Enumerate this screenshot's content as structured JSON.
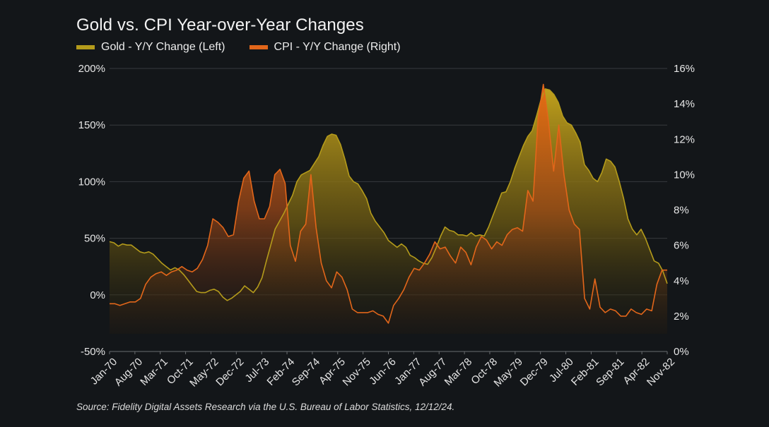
{
  "chart_title": "Gold vs. CPI Year-over-Year Changes",
  "legend": {
    "gold_label": "Gold - Y/Y Change (Left)",
    "cpi_label": "CPI - Y/Y Change (Right)"
  },
  "source": "Source: Fidelity Digital Assets Research via the U.S. Bureau of Labor Statistics, 12/12/24.",
  "colors": {
    "background": "#131619",
    "gold": "#b49b1b",
    "cpi": "#e2661a",
    "grid": "#3a3d41"
  },
  "chart_data": {
    "type": "area",
    "title": "Gold vs. CPI Year-over-Year Changes",
    "x_start": "Jan-70",
    "x_end": "Dec-82",
    "x_ticks": [
      "Jan-70",
      "Aug-70",
      "Mar-71",
      "Oct-71",
      "May-72",
      "Dec-72",
      "Jul-73",
      "Feb-74",
      "Sep-74",
      "Apr-75",
      "Nov-75",
      "Jun-76",
      "Jan-77",
      "Aug-77",
      "Mar-78",
      "Oct-78",
      "May-79",
      "Dec-79",
      "Jul-80",
      "Feb-81",
      "Sep-81",
      "Apr-82",
      "Nov-82"
    ],
    "y_left": {
      "ticks": [
        "-50%",
        "0%",
        "50%",
        "100%",
        "150%",
        "200%"
      ],
      "range": [
        -50,
        200
      ]
    },
    "y_right": {
      "ticks": [
        "0%",
        "2%",
        "4%",
        "6%",
        "8%",
        "10%",
        "12%",
        "14%",
        "16%"
      ],
      "range": [
        0,
        16
      ]
    },
    "grid": "horizontal",
    "legend_position": "top-left",
    "series": [
      {
        "name": "Gold - Y/Y Change (Left)",
        "axis": "left",
        "values": [
          47,
          46,
          43,
          45,
          44,
          44,
          41,
          38,
          37,
          38,
          36,
          32,
          28,
          25,
          22,
          24,
          22,
          18,
          13,
          8,
          3,
          2,
          2,
          4,
          5,
          3,
          -2,
          -5,
          -3,
          0,
          3,
          8,
          5,
          2,
          7,
          15,
          30,
          44,
          58,
          65,
          72,
          80,
          88,
          100,
          106,
          108,
          110,
          116,
          122,
          132,
          140,
          142,
          141,
          133,
          120,
          105,
          100,
          98,
          92,
          85,
          72,
          65,
          60,
          55,
          48,
          45,
          42,
          45,
          42,
          35,
          33,
          30,
          28,
          27,
          33,
          42,
          52,
          60,
          57,
          56,
          53,
          53,
          52,
          55,
          52,
          53,
          52,
          60,
          70,
          80,
          90,
          91,
          100,
          112,
          122,
          132,
          140,
          145,
          158,
          172,
          182,
          181,
          177,
          170,
          158,
          152,
          150,
          143,
          135,
          115,
          110,
          103,
          100,
          108,
          120,
          118,
          113,
          100,
          85,
          67,
          58,
          53,
          58,
          50,
          40,
          30,
          28,
          21,
          10
        ],
        "line_color": "#b49b1b"
      },
      {
        "name": "CPI - Y/Y Change (Right)",
        "axis": "right",
        "values": [
          2.7,
          2.7,
          2.6,
          2.7,
          2.8,
          2.8,
          3.0,
          3.8,
          4.2,
          4.4,
          4.5,
          4.3,
          4.5,
          4.6,
          4.8,
          4.6,
          4.5,
          4.7,
          5.2,
          6.0,
          7.5,
          7.3,
          7.0,
          6.5,
          6.6,
          8.5,
          9.8,
          10.2,
          8.5,
          7.5,
          7.5,
          8.2,
          10.0,
          10.3,
          9.5,
          6.0,
          5.1,
          6.8,
          7.2,
          10.0,
          7.0,
          5.0,
          4.0,
          3.6,
          4.5,
          4.2,
          3.5,
          2.4,
          2.2,
          2.2,
          2.2,
          2.3,
          2.1,
          2.0,
          1.6,
          2.6,
          3.0,
          3.5,
          4.2,
          4.7,
          4.6,
          5.0,
          5.5,
          6.2,
          5.8,
          5.9,
          5.4,
          5.0,
          5.9,
          5.6,
          4.9,
          5.9,
          6.5,
          6.3,
          5.8,
          6.2,
          6.0,
          6.6,
          6.9,
          7.0,
          6.8,
          9.1,
          8.5,
          13.2,
          15.1,
          13.0,
          10.2,
          12.8,
          10.0,
          8.0,
          7.2,
          6.9,
          3.0,
          2.4,
          4.1,
          2.5,
          2.2,
          2.4,
          2.3,
          2.0,
          2.0,
          2.4,
          2.2,
          2.1,
          2.4,
          2.3,
          3.8,
          4.6,
          4.6
        ],
        "line_color": "#e2661a"
      }
    ]
  }
}
